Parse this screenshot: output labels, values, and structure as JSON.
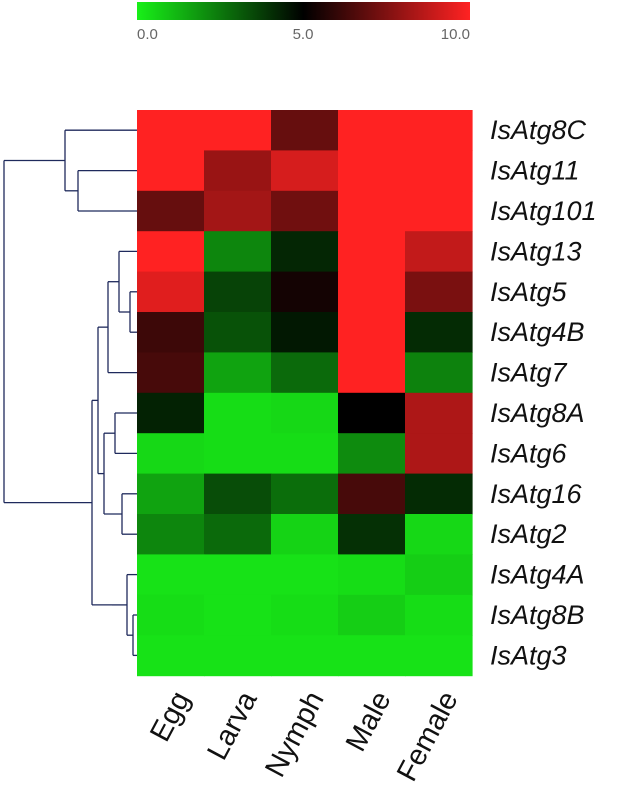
{
  "chart_data": {
    "type": "heatmap",
    "title": "",
    "xlabel": "",
    "ylabel": "",
    "columns": [
      "Egg",
      "Larva",
      "Nymph",
      "Male",
      "Female"
    ],
    "rows": [
      "IsAtg8C",
      "IsAtg11",
      "IsAtg101",
      "IsAtg13",
      "IsAtg5",
      "IsAtg4B",
      "IsAtg7",
      "IsAtg8A",
      "IsAtg6",
      "IsAtg16",
      "IsAtg2",
      "IsAtg4A",
      "IsAtg8B",
      "IsAtg3"
    ],
    "values": [
      [
        10.0,
        10.0,
        7.0,
        10.0,
        10.0
      ],
      [
        10.0,
        8.0,
        9.2,
        10.0,
        10.0
      ],
      [
        7.0,
        8.2,
        7.2,
        10.0,
        10.0
      ],
      [
        10.0,
        2.2,
        4.2,
        10.0,
        8.8
      ],
      [
        9.4,
        3.6,
        5.4,
        10.0,
        7.4
      ],
      [
        6.2,
        3.3,
        4.5,
        10.0,
        4.1
      ],
      [
        6.4,
        1.6,
        2.8,
        10.0,
        2.3
      ],
      [
        4.3,
        0.4,
        0.5,
        5.0,
        8.4
      ],
      [
        0.5,
        0.4,
        0.4,
        2.1,
        8.4
      ],
      [
        1.6,
        3.4,
        2.7,
        6.4,
        4.1
      ],
      [
        2.2,
        2.8,
        0.6,
        4.0,
        0.5
      ],
      [
        0.3,
        0.3,
        0.3,
        0.4,
        0.7
      ],
      [
        0.4,
        0.3,
        0.4,
        0.7,
        0.4
      ],
      [
        0.3,
        0.3,
        0.3,
        0.3,
        0.3
      ]
    ],
    "scale": {
      "min": 0.0,
      "mid": 5.0,
      "max": 10.0,
      "tick_labels": [
        "0.0",
        "5.0",
        "10.0"
      ],
      "low_color": "#18f018",
      "mid_color": "#000000",
      "high_color": "#ff2222"
    },
    "dendrogram_color": "#1f2a5c",
    "legend_placement": "top-center",
    "grid": false
  }
}
